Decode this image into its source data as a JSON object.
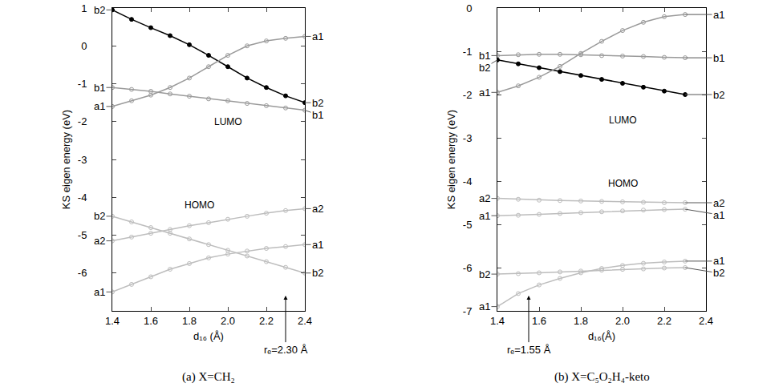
{
  "chart_data": [
    {
      "type": "line",
      "title": "(a) X=CH₂",
      "x_label": "d₁₆ (Å)",
      "y_label": "KS eigen energy (eV)",
      "x": [
        1.4,
        1.5,
        1.6,
        1.7,
        1.8,
        1.9,
        2.0,
        2.1,
        2.2,
        2.3,
        2.4
      ],
      "xlim": [
        1.4,
        2.4
      ],
      "xticks": [
        1.4,
        1.6,
        1.8,
        {
          "value": 2,
          "label": "2.0"
        },
        2.2,
        2.4
      ],
      "ylim": [
        -7,
        1
      ],
      "yticks": [
        -6,
        -5,
        -4,
        -3,
        -2,
        -1,
        0,
        1
      ],
      "series": [
        {
          "name": "b2",
          "color": "#000000",
          "marker": "circle",
          "values": [
            0.95,
            0.7,
            0.48,
            0.27,
            0.03,
            -0.25,
            -0.55,
            -0.85,
            -1.1,
            -1.32,
            -1.5
          ]
        },
        {
          "name": "a1",
          "color": "#9a9a9a",
          "marker": "circle-open",
          "values": [
            -1.6,
            -1.45,
            -1.3,
            -1.1,
            -0.85,
            -0.55,
            -0.25,
            0.0,
            0.13,
            0.2,
            0.25
          ]
        },
        {
          "name": "b1",
          "color": "#9a9a9a",
          "marker": "circle-open",
          "values": [
            -1.1,
            -1.15,
            -1.2,
            -1.27,
            -1.33,
            -1.4,
            -1.45,
            -1.52,
            -1.58,
            -1.64,
            -1.7
          ]
        },
        {
          "name": "b2",
          "color": "#bdbdbd",
          "marker": "circle-open",
          "values": [
            -4.5,
            -4.65,
            -4.8,
            -4.95,
            -5.1,
            -5.25,
            -5.4,
            -5.55,
            -5.7,
            -5.85,
            -6.0
          ]
        },
        {
          "name": "a2",
          "color": "#bdbdbd",
          "marker": "circle-open",
          "values": [
            -5.15,
            -5.05,
            -4.95,
            -4.85,
            -4.75,
            -4.67,
            -4.58,
            -4.5,
            -4.42,
            -4.35,
            -4.3
          ]
        },
        {
          "name": "a1",
          "color": "#bdbdbd",
          "marker": "circle-open",
          "values": [
            -6.5,
            -6.3,
            -6.1,
            -5.9,
            -5.75,
            -5.6,
            -5.5,
            -5.42,
            -5.35,
            -5.3,
            -5.25
          ]
        }
      ],
      "annotations": [
        {
          "text": "LUMO",
          "x": 2.0,
          "y": -2.0
        },
        {
          "text": "HOMO",
          "x": 1.85,
          "y": -4.2
        },
        {
          "text": "rₑ=2.30 Å",
          "x": 2.3
        }
      ]
    },
    {
      "type": "line",
      "title": "(b) X=C₅O₂H₄-keto",
      "x_label": "d₁₆(Å)",
      "y_label": "KS eigen energy (eV)",
      "x": [
        1.4,
        1.5,
        1.6,
        1.7,
        1.8,
        1.9,
        2.0,
        2.1,
        2.2,
        2.3
      ],
      "xlim": [
        1.4,
        2.4
      ],
      "xticks": [
        1.4,
        1.6,
        1.8,
        {
          "value": 2,
          "label": "2.0"
        },
        2.2,
        2.4
      ],
      "ylim": [
        -7,
        0
      ],
      "yticks": [
        -7,
        -6,
        -5,
        -4,
        -3,
        -2,
        -1,
        0
      ],
      "series": [
        {
          "name": "b2",
          "color": "#000000",
          "marker": "circle",
          "values": [
            -1.2,
            -1.29,
            -1.38,
            -1.47,
            -1.56,
            -1.65,
            -1.74,
            -1.83,
            -1.92,
            -2.0
          ]
        },
        {
          "name": "a1",
          "color": "#9a9a9a",
          "marker": "circle-open",
          "values": [
            -1.95,
            -1.8,
            -1.6,
            -1.35,
            -1.05,
            -0.77,
            -0.52,
            -0.33,
            -0.2,
            -0.15
          ]
        },
        {
          "name": "b1",
          "color": "#9a9a9a",
          "marker": "circle-open",
          "values": [
            -1.1,
            -1.08,
            -1.07,
            -1.07,
            -1.08,
            -1.1,
            -1.11,
            -1.12,
            -1.14,
            -1.15
          ]
        },
        {
          "name": "a2",
          "color": "#bdbdbd",
          "marker": "circle-open",
          "values": [
            -4.4,
            -4.42,
            -4.44,
            -4.45,
            -4.46,
            -4.47,
            -4.48,
            -4.49,
            -4.5,
            -4.5
          ]
        },
        {
          "name": "a1",
          "color": "#bdbdbd",
          "marker": "circle-open",
          "values": [
            -4.8,
            -4.79,
            -4.77,
            -4.75,
            -4.73,
            -4.71,
            -4.69,
            -4.67,
            -4.66,
            -4.65
          ]
        },
        {
          "name": "b2",
          "color": "#bdbdbd",
          "marker": "circle-open",
          "values": [
            -6.15,
            -6.14,
            -6.12,
            -6.1,
            -6.08,
            -6.06,
            -6.04,
            -6.03,
            -6.01,
            -6.0
          ]
        },
        {
          "name": "a1",
          "color": "#bdbdbd",
          "marker": "circle-open",
          "values": [
            -6.9,
            -6.6,
            -6.4,
            -6.25,
            -6.12,
            -6.02,
            -5.95,
            -5.9,
            -5.87,
            -5.85
          ]
        }
      ],
      "annotations": [
        {
          "text": "LUMO",
          "x": 2.0,
          "y": -2.6
        },
        {
          "text": "HOMO",
          "x": 2.0,
          "y": -4.05
        },
        {
          "text": "rₑ=1.55 Å",
          "x": 1.55
        }
      ]
    }
  ]
}
